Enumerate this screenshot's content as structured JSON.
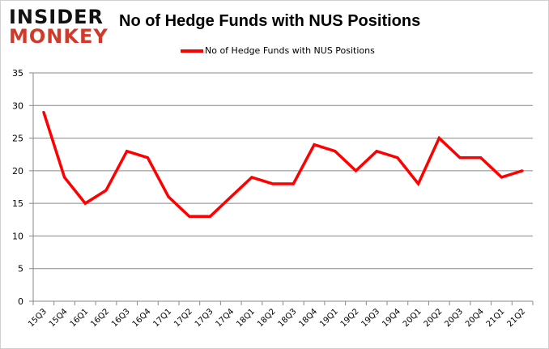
{
  "logo": {
    "line1": "INSIDER",
    "line2": "MONKEY"
  },
  "chart_data": {
    "type": "line",
    "title": "No of Hedge Funds with NUS Positions",
    "xlabel": "",
    "ylabel": "",
    "categories": [
      "15Q3",
      "15Q4",
      "16Q1",
      "16Q2",
      "16Q3",
      "16Q4",
      "17Q1",
      "17Q2",
      "17Q3",
      "17Q4",
      "18Q1",
      "18Q2",
      "18Q3",
      "18Q4",
      "19Q1",
      "19Q2",
      "19Q3",
      "19Q4",
      "20Q1",
      "20Q2",
      "20Q3",
      "20Q4",
      "21Q1",
      "21Q2"
    ],
    "series": [
      {
        "name": "No of Hedge Funds with NUS Positions",
        "color": "#ff0000",
        "values": [
          29,
          19,
          15,
          17,
          23,
          22,
          16,
          13,
          13,
          16,
          19,
          18,
          18,
          24,
          23,
          20,
          23,
          22,
          18,
          25,
          22,
          22,
          19,
          20
        ]
      }
    ],
    "ylim": [
      0,
      35
    ],
    "yticks": [
      0,
      5,
      10,
      15,
      20,
      25,
      30,
      35
    ],
    "grid": true,
    "legend": "top-center"
  }
}
